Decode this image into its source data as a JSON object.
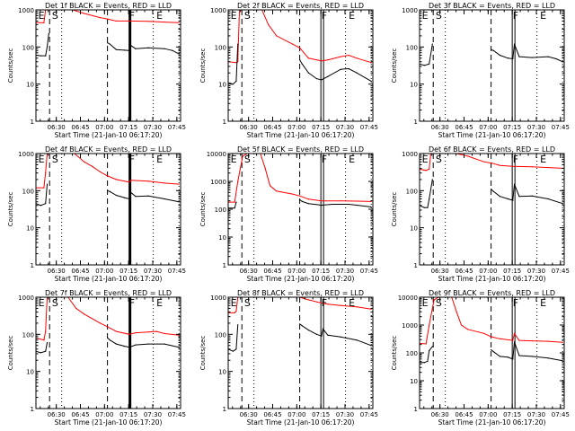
{
  "chart_data": {
    "type": "line",
    "layout": "3x3 grid",
    "common": {
      "xlabel": "Start Time (21-Jan-10 06:17:20)",
      "ylabel": "Counts/sec",
      "yscale": "log",
      "x_ticks": [
        "06:30",
        "06:45",
        "07:00",
        "07:15",
        "07:30",
        "07:45"
      ],
      "x_tick_minutes": [
        12.67,
        27.67,
        42.67,
        57.67,
        72.67,
        87.67
      ],
      "xlim_minutes": [
        0,
        90
      ],
      "series_legend": {
        "black": "Events",
        "red": "LLD"
      },
      "colors": {
        "events": "#000000",
        "lld": "#ff0000"
      },
      "markers": {
        "dashed_minutes": [
          8.5,
          44.5
        ],
        "dotted_minutes": [
          16,
          73,
          89
        ],
        "solid_minutes": [
          58.5
        ],
        "labels": [
          {
            "text": "E",
            "minute": 1.5
          },
          {
            "text": "S",
            "minute": 10
          },
          {
            "text": "F",
            "minute": 58
          },
          {
            "text": "E",
            "minute": 75
          }
        ]
      }
    },
    "panels": [
      {
        "title": "Det 1f BLACK = Events, RED = LLD",
        "ylim": [
          1,
          1000
        ],
        "y_ticks": [
          "1",
          "10",
          "100",
          "1000"
        ],
        "solid_style": "thick",
        "events": {
          "x": [
            0,
            3,
            6,
            7,
            8,
            44.5,
            46,
            50,
            55,
            58,
            59,
            62,
            70,
            80,
            85,
            89
          ],
          "y": [
            60,
            58,
            58,
            100,
            230,
            130,
            120,
            85,
            82,
            80,
            110,
            90,
            95,
            90,
            80,
            65
          ]
        },
        "lld": {
          "x": [
            0,
            5,
            6,
            7,
            23,
            30,
            40,
            45,
            50,
            58,
            70,
            80,
            89
          ],
          "y": [
            450,
            450,
            1000,
            1000,
            1000,
            800,
            620,
            560,
            500,
            500,
            490,
            470,
            450
          ]
        }
      },
      {
        "title": "Det 2f BLACK = Events, RED = LLD",
        "ylim": [
          1,
          1000
        ],
        "y_ticks": [
          "1",
          "10",
          "100",
          "1000"
        ],
        "solid_style": "double",
        "events": {
          "x": [
            0,
            3,
            5,
            6,
            44.5,
            46,
            50,
            55,
            58,
            62,
            70,
            75,
            80,
            89
          ],
          "y": [
            11,
            10,
            12,
            120,
            45,
            35,
            20,
            14,
            13,
            16,
            25,
            26,
            20,
            12
          ]
        },
        "lld": {
          "x": [
            0,
            5,
            6,
            7,
            21,
            25,
            30,
            40,
            44.5,
            50,
            58,
            62,
            70,
            75,
            80,
            89
          ],
          "y": [
            40,
            38,
            40,
            1000,
            1000,
            400,
            200,
            120,
            95,
            50,
            42,
            45,
            55,
            60,
            50,
            38
          ]
        }
      },
      {
        "title": "Det 3f BLACK = Events, RED = LLD",
        "ylim": [
          1,
          1000
        ],
        "y_ticks": [
          "1",
          "10",
          "100",
          "1000"
        ],
        "solid_style": "double",
        "events": {
          "x": [
            0,
            3,
            6,
            8,
            44.5,
            46,
            50,
            55,
            58,
            59,
            62,
            70,
            80,
            85,
            89
          ],
          "y": [
            35,
            32,
            35,
            120,
            85,
            80,
            60,
            50,
            48,
            120,
            55,
            52,
            55,
            48,
            40
          ]
        },
        "lld": {
          "x": [],
          "y": []
        }
      },
      {
        "title": "Det 4f BLACK = Events, RED = LLD",
        "ylim": [
          1,
          1000
        ],
        "y_ticks": [
          "1",
          "10",
          "100",
          "1000"
        ],
        "solid_style": "thick",
        "events": {
          "x": [
            0,
            3,
            6,
            7,
            44.5,
            46,
            50,
            55,
            58,
            59,
            62,
            70,
            80,
            89
          ],
          "y": [
            45,
            40,
            45,
            150,
            100,
            95,
            75,
            65,
            60,
            90,
            70,
            72,
            60,
            50
          ]
        },
        "lld": {
          "x": [
            0,
            5,
            6,
            7,
            24,
            30,
            35,
            40,
            44.5,
            50,
            58,
            59,
            70,
            80,
            89
          ],
          "y": [
            120,
            120,
            300,
            1000,
            1000,
            600,
            450,
            320,
            250,
            200,
            170,
            190,
            180,
            160,
            150
          ]
        }
      },
      {
        "title": "Det 5f BLACK = Events, RED = LLD",
        "ylim": [
          1,
          10000
        ],
        "y_ticks": [
          "1",
          "10",
          "100",
          "1000",
          "10000"
        ],
        "solid_style": "double",
        "events": {
          "x": [
            0,
            4,
            5,
            44.5,
            46,
            50,
            58,
            65,
            75,
            80,
            89
          ],
          "y": [
            110,
            110,
            180,
            220,
            190,
            160,
            140,
            150,
            150,
            140,
            120
          ]
        },
        "lld": {
          "x": [
            0,
            4,
            6,
            9,
            12,
            20,
            23,
            26,
            30,
            40,
            44.5,
            50,
            58,
            70,
            80,
            89
          ],
          "y": [
            180,
            180,
            1000,
            8000,
            10000,
            10000,
            3000,
            700,
            450,
            350,
            300,
            230,
            200,
            200,
            195,
            190
          ]
        }
      },
      {
        "title": "Det 6f BLACK = Events, RED = LLD",
        "ylim": [
          1,
          1000
        ],
        "y_ticks": [
          "1",
          "10",
          "100",
          "1000"
        ],
        "solid_style": "double",
        "events": {
          "x": [
            0,
            3,
            5,
            6,
            8,
            44.5,
            46,
            50,
            55,
            58,
            59,
            62,
            70,
            80,
            89
          ],
          "y": [
            40,
            35,
            35,
            60,
            200,
            110,
            95,
            70,
            60,
            55,
            150,
            70,
            72,
            60,
            45
          ]
        },
        "lld": {
          "x": [
            0,
            4,
            6,
            7,
            23,
            30,
            40,
            45,
            50,
            58,
            70,
            80,
            89
          ],
          "y": [
            380,
            350,
            380,
            1000,
            1000,
            850,
            600,
            550,
            480,
            450,
            440,
            420,
            400
          ]
        }
      },
      {
        "title": "Det 7f BLACK = Events, RED = LLD",
        "ylim": [
          1,
          1000
        ],
        "y_ticks": [
          "1",
          "10",
          "100",
          "1000"
        ],
        "solid_style": "thick",
        "events": {
          "x": [
            0,
            3,
            6,
            7,
            44.5,
            46,
            50,
            55,
            58,
            62,
            70,
            80,
            89
          ],
          "y": [
            35,
            32,
            35,
            60,
            80,
            70,
            55,
            48,
            45,
            52,
            55,
            55,
            45
          ]
        },
        "lld": {
          "x": [
            0,
            5,
            6,
            7,
            20,
            25,
            30,
            40,
            44.5,
            50,
            58,
            62,
            70,
            75,
            80,
            89
          ],
          "y": [
            80,
            70,
            120,
            1000,
            1000,
            500,
            350,
            200,
            160,
            120,
            100,
            110,
            115,
            120,
            105,
            95
          ]
        }
      },
      {
        "title": "Det 8f BLACK = Events, RED = LLD",
        "ylim": [
          1,
          1000
        ],
        "y_ticks": [
          "1",
          "10",
          "100",
          "1000"
        ],
        "solid_style": "double",
        "events": {
          "x": [
            0,
            3,
            5,
            6,
            44.5,
            46,
            50,
            55,
            58,
            59,
            62,
            70,
            80,
            89
          ],
          "y": [
            40,
            35,
            40,
            180,
            190,
            170,
            130,
            100,
            90,
            140,
            95,
            85,
            70,
            50
          ]
        },
        "lld": {
          "x": [
            0,
            4,
            5,
            6,
            44.5,
            50,
            55,
            58,
            62,
            70,
            80,
            89
          ],
          "y": [
            380,
            380,
            420,
            1000,
            1000,
            850,
            750,
            700,
            650,
            600,
            550,
            480
          ]
        }
      },
      {
        "title": "Det 9f BLACK = Events, RED = LLD",
        "ylim": [
          1,
          10000
        ],
        "y_ticks": [
          "1",
          "10",
          "100",
          "1000",
          "10000"
        ],
        "solid_style": "double",
        "events": {
          "x": [
            0,
            3,
            5,
            6,
            8,
            44.5,
            46,
            50,
            55,
            58,
            59,
            62,
            70,
            80,
            89
          ],
          "y": [
            45,
            45,
            50,
            120,
            170,
            130,
            110,
            75,
            70,
            60,
            250,
            80,
            75,
            65,
            52
          ]
        },
        "lld": {
          "x": [
            0,
            4,
            6,
            9,
            12,
            20,
            23,
            26,
            30,
            40,
            44.5,
            50,
            58,
            59,
            62,
            70,
            80,
            89
          ],
          "y": [
            220,
            210,
            1000,
            8000,
            10000,
            10000,
            3000,
            1000,
            700,
            500,
            380,
            320,
            280,
            500,
            280,
            270,
            260,
            240
          ]
        }
      }
    ]
  }
}
